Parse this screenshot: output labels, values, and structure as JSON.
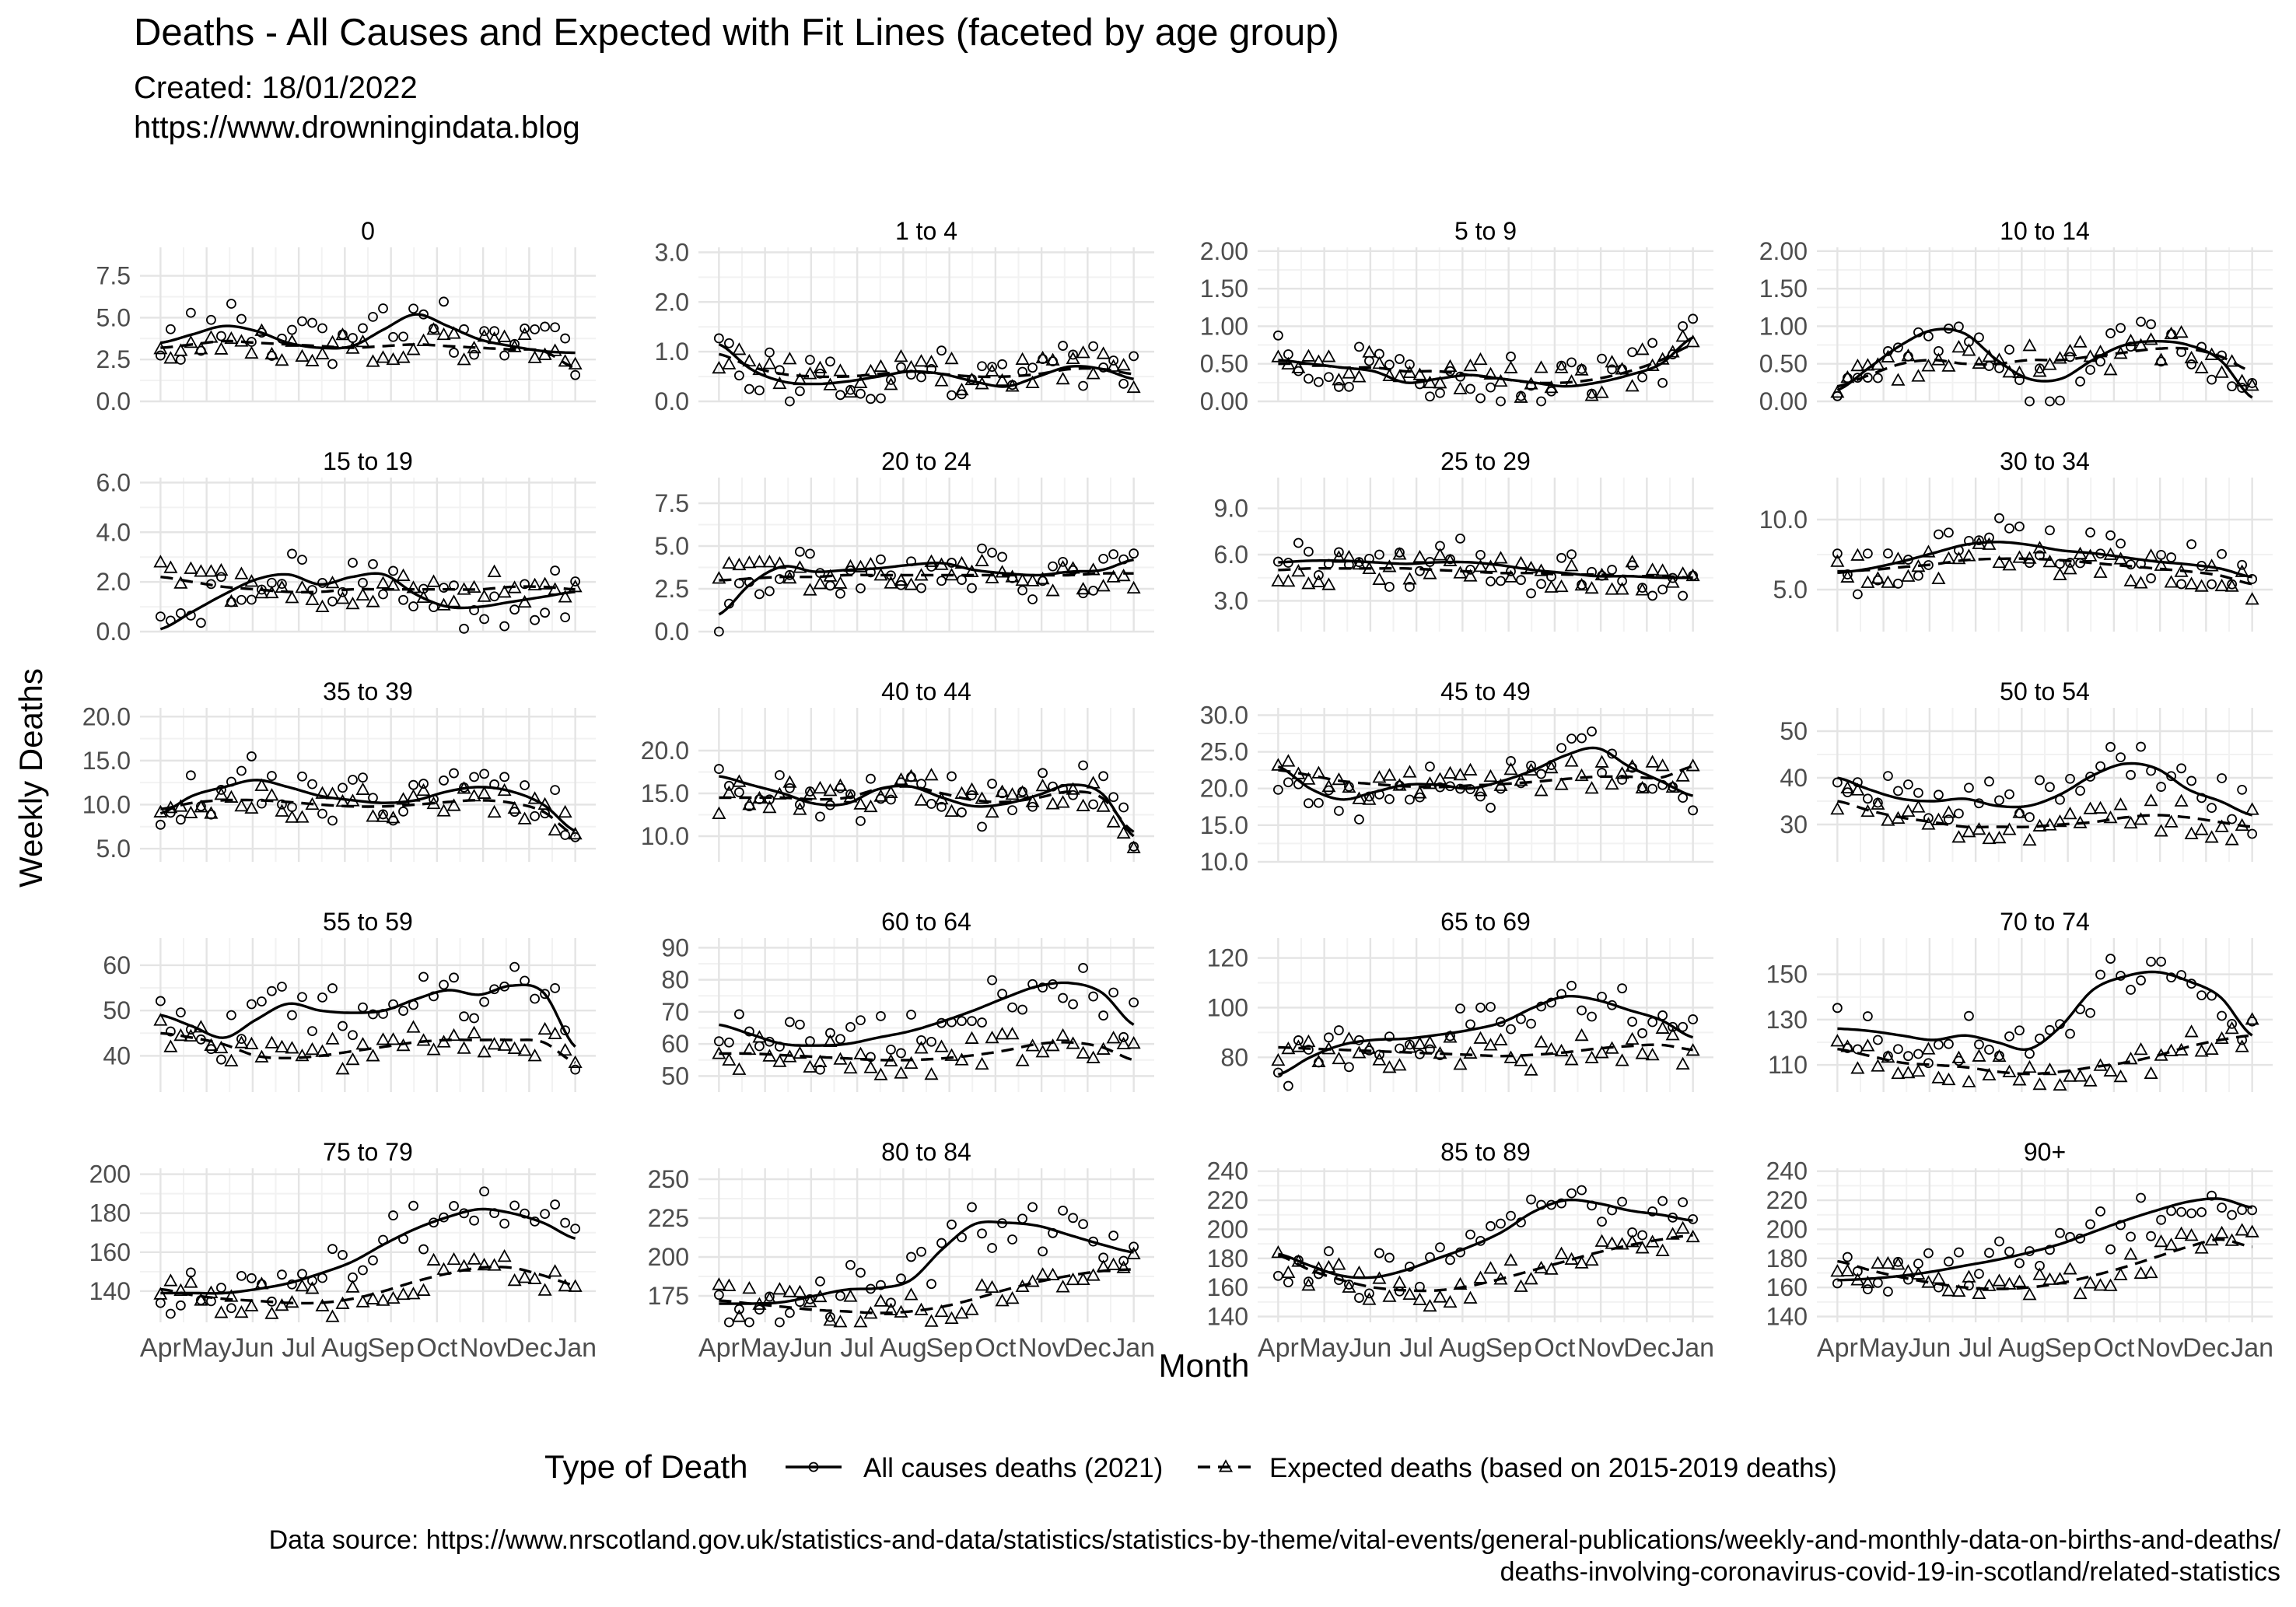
{
  "chart_data": {
    "type": "scatter",
    "title": "Deaths - All Causes and Expected with Fit Lines (faceted by age group)",
    "subtitle": "Created:  18/01/2022",
    "url": "https://www.drowningindata.blog",
    "xlabel": "Month",
    "ylabel": "Weekly Deaths",
    "x_ticks": [
      "Apr",
      "May",
      "Jun",
      "Jul",
      "Aug",
      "Sep",
      "Oct",
      "Nov",
      "Dec",
      "Jan"
    ],
    "legend": {
      "title": "Type of Death",
      "placement": "bottom",
      "entries": [
        "All causes deaths (2021)",
        "Expected deaths (based on 2015-2019 deaths)"
      ]
    },
    "source_lines": [
      "Data source: https://www.nrscotland.gov.uk/statistics-and-data/statistics/statistics-by-theme/vital-events/general-publications/weekly-and-monthly-data-on-births-and-deaths/",
      "deaths-involving-coronavirus-covid-19-in-scotland/related-statistics"
    ],
    "grid": true,
    "facets": [
      {
        "label": "0",
        "ylim": [
          0,
          9.2
        ],
        "yticks": [
          0,
          2.5,
          5,
          7.5
        ],
        "ytick_labels": [
          "0.0",
          "2.5",
          "5.0",
          "7.5"
        ],
        "all_fit": [
          3.5,
          4.0,
          4.5,
          4.2,
          3.5,
          3.2,
          3.3,
          4.3,
          5.2,
          4.5,
          3.7,
          3.3,
          3.0,
          2.9
        ],
        "exp_fit": [
          3.2,
          3.4,
          3.6,
          3.5,
          3.4,
          3.3,
          3.2,
          3.3,
          3.4,
          3.3,
          3.2,
          3.1,
          3.0,
          2.0
        ]
      },
      {
        "label": "1 to 4",
        "ylim": [
          0,
          3.1
        ],
        "yticks": [
          0,
          1,
          2,
          3
        ],
        "ytick_labels": [
          "0.0",
          "1.0",
          "2.0",
          "3.0"
        ],
        "all_fit": [
          1.15,
          0.65,
          0.4,
          0.35,
          0.4,
          0.5,
          0.6,
          0.55,
          0.4,
          0.3,
          0.5,
          0.7,
          0.65,
          0.45
        ],
        "exp_fit": [
          0.95,
          0.7,
          0.55,
          0.5,
          0.5,
          0.55,
          0.6,
          0.55,
          0.5,
          0.5,
          0.55,
          0.65,
          0.65,
          0.55
        ]
      },
      {
        "label": "5 to 9",
        "ylim": [
          0,
          2.05
        ],
        "yticks": [
          0,
          0.5,
          1,
          1.5,
          2
        ],
        "ytick_labels": [
          "0.00",
          "0.50",
          "1.00",
          "1.50",
          "2.00"
        ],
        "all_fit": [
          0.55,
          0.5,
          0.45,
          0.4,
          0.25,
          0.3,
          0.35,
          0.3,
          0.25,
          0.2,
          0.25,
          0.35,
          0.5,
          0.85
        ],
        "exp_fit": [
          0.5,
          0.5,
          0.45,
          0.45,
          0.4,
          0.4,
          0.35,
          0.3,
          0.25,
          0.25,
          0.3,
          0.4,
          0.55,
          0.75
        ]
      },
      {
        "label": "10 to 14",
        "ylim": [
          0,
          2.05
        ],
        "yticks": [
          0,
          0.5,
          1,
          1.5,
          2
        ],
        "ytick_labels": [
          "0.00",
          "0.50",
          "1.00",
          "1.50",
          "2.00"
        ],
        "all_fit": [
          0.15,
          0.45,
          0.75,
          0.95,
          0.9,
          0.55,
          0.3,
          0.3,
          0.55,
          0.75,
          0.8,
          0.75,
          0.55,
          0.05
        ],
        "exp_fit": [
          0.2,
          0.35,
          0.5,
          0.55,
          0.5,
          0.5,
          0.55,
          0.55,
          0.6,
          0.65,
          0.7,
          0.7,
          0.6,
          0.4
        ]
      },
      {
        "label": "15 to 19",
        "ylim": [
          0,
          6.2
        ],
        "yticks": [
          0,
          2,
          4,
          6
        ],
        "ytick_labels": [
          "0.0",
          "2.0",
          "4.0",
          "6.0"
        ],
        "all_fit": [
          0.1,
          0.8,
          1.5,
          2.1,
          2.3,
          1.9,
          2.2,
          2.3,
          1.5,
          1.0,
          1.0,
          1.2,
          1.4,
          1.6
        ],
        "exp_fit": [
          2.2,
          2.0,
          1.8,
          1.7,
          1.6,
          1.6,
          1.7,
          1.7,
          1.7,
          1.7,
          1.7,
          1.8,
          1.8,
          1.7
        ]
      },
      {
        "label": "20 to 24",
        "ylim": [
          0,
          9.0
        ],
        "yticks": [
          0,
          2.5,
          5,
          7.5
        ],
        "ytick_labels": [
          "0.0",
          "2.5",
          "5.0",
          "7.5"
        ],
        "all_fit": [
          1.0,
          2.8,
          3.8,
          3.5,
          3.6,
          3.7,
          3.9,
          4.0,
          3.6,
          3.4,
          3.3,
          3.5,
          3.6,
          4.2
        ],
        "exp_fit": [
          3.0,
          3.1,
          3.2,
          3.2,
          3.3,
          3.3,
          3.3,
          3.3,
          3.3,
          3.3,
          3.3,
          3.3,
          3.4,
          3.4
        ]
      },
      {
        "label": "25 to 29",
        "ylim": [
          1,
          11
        ],
        "yticks": [
          3,
          6,
          9
        ],
        "ytick_labels": [
          "3.0",
          "6.0",
          "9.0"
        ],
        "all_fit": [
          5.5,
          5.6,
          5.6,
          5.5,
          5.4,
          5.5,
          5.5,
          5.3,
          5.0,
          4.8,
          4.6,
          4.6,
          4.5,
          4.5
        ],
        "exp_fit": [
          5.0,
          5.1,
          5.1,
          5.1,
          5.1,
          5.0,
          4.9,
          4.8,
          4.8,
          4.7,
          4.7,
          4.6,
          4.6,
          4.5
        ]
      },
      {
        "label": "30 to 34",
        "ylim": [
          2,
          13
        ],
        "yticks": [
          5,
          10
        ],
        "ytick_labels": [
          "5.0",
          "10.0"
        ],
        "all_fit": [
          6.2,
          6.5,
          7.0,
          7.6,
          8.2,
          8.4,
          8.2,
          7.8,
          7.6,
          7.3,
          7.0,
          6.8,
          6.5,
          5.9
        ],
        "exp_fit": [
          6.3,
          6.4,
          6.6,
          6.8,
          7.1,
          7.2,
          7.2,
          7.1,
          6.9,
          6.7,
          6.5,
          6.3,
          6.0,
          5.4
        ]
      },
      {
        "label": "35 to 39",
        "ylim": [
          3.5,
          21
        ],
        "yticks": [
          5,
          10,
          15,
          20
        ],
        "ytick_labels": [
          "5.0",
          "10.0",
          "15.0",
          "20.0"
        ],
        "all_fit": [
          9.0,
          11.0,
          12.0,
          12.8,
          12.0,
          11.0,
          10.5,
          10.2,
          10.5,
          11.5,
          12.0,
          11.5,
          10.0,
          7.0
        ],
        "exp_fit": [
          9.5,
          10.2,
          10.5,
          10.5,
          10.3,
          10.0,
          9.8,
          9.8,
          10.0,
          10.3,
          10.5,
          10.2,
          9.2,
          6.5
        ]
      },
      {
        "label": "40 to 44",
        "ylim": [
          7,
          25
        ],
        "yticks": [
          10,
          15,
          20
        ],
        "ytick_labels": [
          "10.0",
          "15.0",
          "20.0"
        ],
        "all_fit": [
          17.0,
          16.0,
          15.0,
          13.8,
          13.8,
          15.5,
          15.8,
          14.5,
          13.5,
          13.8,
          14.8,
          16.0,
          15.0,
          10.0
        ],
        "exp_fit": [
          14.5,
          14.5,
          14.5,
          14.3,
          14.5,
          15.5,
          15.8,
          15.0,
          14.2,
          14.0,
          14.5,
          15.2,
          14.5,
          10.5
        ]
      },
      {
        "label": "45 to 49",
        "ylim": [
          10,
          31
        ],
        "yticks": [
          10,
          15,
          20,
          25,
          30
        ],
        "ytick_labels": [
          "10.0",
          "15.0",
          "20.0",
          "25.0",
          "30.0"
        ],
        "all_fit": [
          23.0,
          20.0,
          18.5,
          19.5,
          20.5,
          20.5,
          20.0,
          21.0,
          22.5,
          24.5,
          25.5,
          23.0,
          21.0,
          19.0
        ],
        "exp_fit": [
          22.5,
          21.8,
          21.0,
          20.6,
          20.3,
          20.2,
          20.4,
          20.6,
          20.9,
          21.3,
          21.6,
          21.6,
          21.5,
          23.0
        ]
      },
      {
        "label": "50 to 54",
        "ylim": [
          22,
          55
        ],
        "yticks": [
          30,
          40,
          50
        ],
        "ytick_labels": [
          "30",
          "40",
          "50"
        ],
        "all_fit": [
          40.0,
          37.5,
          35.5,
          35.0,
          35.5,
          34.0,
          34.0,
          36.5,
          40.5,
          43.0,
          42.0,
          37.5,
          35.0,
          32.0
        ],
        "exp_fit": [
          35.0,
          33.0,
          31.5,
          30.5,
          29.5,
          29.5,
          29.5,
          30.0,
          30.5,
          31.5,
          32.0,
          31.5,
          30.5,
          29.5
        ]
      },
      {
        "label": "55 to 59",
        "ylim": [
          32,
          66
        ],
        "yticks": [
          40,
          50,
          60
        ],
        "ytick_labels": [
          "40",
          "50",
          "60"
        ],
        "all_fit": [
          49.0,
          46.5,
          44.0,
          48.0,
          51.5,
          50.0,
          49.5,
          50.0,
          52.5,
          54.5,
          53.5,
          55.5,
          54.0,
          42.0
        ],
        "exp_fit": [
          45.0,
          44.0,
          42.5,
          40.0,
          39.5,
          40.0,
          41.0,
          42.0,
          43.0,
          43.5,
          43.5,
          43.5,
          43.0,
          38.5
        ]
      },
      {
        "label": "60 to 64",
        "ylim": [
          45,
          93
        ],
        "yticks": [
          50,
          60,
          70,
          80,
          90
        ],
        "ytick_labels": [
          "50",
          "60",
          "70",
          "80",
          "90"
        ],
        "all_fit": [
          66.0,
          63.0,
          60.0,
          59.5,
          60.0,
          62.0,
          64.0,
          67.0,
          70.5,
          74.5,
          78.0,
          79.0,
          76.0,
          66.0
        ],
        "exp_fit": [
          57.0,
          57.0,
          56.5,
          56.0,
          55.5,
          55.0,
          55.0,
          55.5,
          56.5,
          58.0,
          60.0,
          60.5,
          59.0,
          55.0
        ]
      },
      {
        "label": "65 to 69",
        "ylim": [
          66,
          128
        ],
        "yticks": [
          80,
          100,
          120
        ],
        "ytick_labels": [
          "80",
          "100",
          "120"
        ],
        "all_fit": [
          73.0,
          80.0,
          85.0,
          87.0,
          87.5,
          89.0,
          91.0,
          94.0,
          100.0,
          104.5,
          103.0,
          99.0,
          95.0,
          88.0
        ],
        "exp_fit": [
          84.0,
          83.5,
          83.0,
          82.5,
          82.0,
          81.5,
          81.0,
          80.5,
          81.0,
          82.0,
          83.5,
          84.5,
          85.0,
          83.0
        ]
      },
      {
        "label": "70 to 74",
        "ylim": [
          98,
          166
        ],
        "yticks": [
          110,
          130,
          150
        ],
        "ytick_labels": [
          "110",
          "130",
          "150"
        ],
        "all_fit": [
          126.0,
          125.0,
          123.0,
          121.0,
          123.0,
          120.0,
          117.0,
          127.0,
          143.0,
          149.0,
          151.0,
          147.0,
          140.0,
          123.0
        ],
        "exp_fit": [
          117.0,
          114.0,
          111.0,
          110.0,
          109.0,
          107.0,
          106.0,
          107.0,
          109.0,
          111.0,
          114.0,
          118.0,
          121.0,
          123.0
        ]
      },
      {
        "label": "75 to 79",
        "ylim": [
          124,
          203
        ],
        "yticks": [
          140,
          160,
          180,
          200
        ],
        "ytick_labels": [
          "140",
          "160",
          "180",
          "200"
        ],
        "all_fit": [
          139.0,
          139.0,
          139.0,
          141.0,
          144.0,
          149.0,
          155.0,
          164.0,
          172.0,
          178.0,
          182.0,
          180.0,
          175.0,
          167.0
        ],
        "exp_fit": [
          141.0,
          138.0,
          136.0,
          135.0,
          134.0,
          134.0,
          136.0,
          140.0,
          145.0,
          149.0,
          152.0,
          152.0,
          148.0,
          143.0
        ]
      },
      {
        "label": "80 to 84",
        "ylim": [
          158,
          257
        ],
        "yticks": [
          175,
          200,
          225,
          250
        ],
        "ytick_labels": [
          "175",
          "200",
          "225",
          "250"
        ],
        "all_fit": [
          170.0,
          170.0,
          171.0,
          175.0,
          179.0,
          180.0,
          185.0,
          205.0,
          221.0,
          222.0,
          220.0,
          214.0,
          208.0,
          203.0
        ],
        "exp_fit": [
          172.0,
          170.0,
          168.0,
          166.0,
          165.0,
          164.0,
          165.0,
          168.0,
          173.0,
          179.0,
          184.0,
          188.0,
          191.0,
          192.0
        ]
      },
      {
        "label": "85 to 89",
        "ylim": [
          136,
          242
        ],
        "yticks": [
          140,
          160,
          180,
          200,
          220,
          240
        ],
        "ytick_labels": [
          "140",
          "160",
          "180",
          "200",
          "220",
          "240"
        ],
        "all_fit": [
          183.0,
          175.0,
          168.0,
          167.0,
          172.0,
          180.0,
          188.0,
          198.0,
          212.0,
          220.0,
          218.0,
          213.0,
          210.0,
          206.0
        ],
        "exp_fit": [
          182.0,
          172.0,
          165.0,
          160.0,
          158.0,
          158.0,
          161.0,
          166.0,
          172.0,
          178.0,
          184.0,
          189.0,
          193.0,
          196.0
        ]
      },
      {
        "label": "90+",
        "ylim": [
          136,
          242
        ],
        "yticks": [
          140,
          160,
          180,
          200,
          220,
          240
        ],
        "ytick_labels": [
          "140",
          "160",
          "180",
          "200",
          "220",
          "240"
        ],
        "all_fit": [
          165.0,
          166.0,
          168.0,
          171.0,
          175.0,
          179.0,
          184.0,
          190.0,
          198.0,
          206.0,
          213.0,
          219.0,
          221.0,
          215.0
        ],
        "exp_fit": [
          178.0,
          172.0,
          167.0,
          163.0,
          160.0,
          159.0,
          160.0,
          163.0,
          168.0,
          174.0,
          181.0,
          188.0,
          193.0,
          188.0
        ]
      }
    ]
  }
}
